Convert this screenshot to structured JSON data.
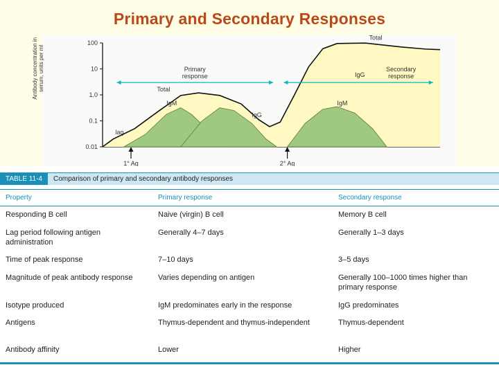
{
  "title": "Primary and Secondary Responses",
  "chart": {
    "type": "line-log",
    "background": "#fafbf9",
    "axis_color": "#111",
    "ylabel": "Antibody concentration in serum,\nunits per ml",
    "ylim": [
      0.01,
      100
    ],
    "yticks": [
      0.01,
      0.1,
      1.0,
      10,
      100
    ],
    "ytick_labels": [
      "0.01",
      "0.1",
      "1.0",
      "10",
      "100"
    ],
    "label_fontsize": 9,
    "plot_labels": {
      "lag": "lag",
      "total1": "Total",
      "igm1": "IgM",
      "igg1": "IgG",
      "primary": "Primary\nresponse",
      "secondary": "Secondary\nresponse",
      "total2": "Total",
      "igg2": "IgG",
      "igm2": "IgM",
      "ag1": "1° Ag",
      "ag2": "2° Ag"
    },
    "colors": {
      "total_line": "#111",
      "total_fill": "#fff8c2",
      "ig_fill": "#9ec97f",
      "arrow": "#0ab6c2"
    },
    "total_curve": [
      [
        90,
        0.01
      ],
      [
        105,
        0.02
      ],
      [
        135,
        0.05
      ],
      [
        170,
        0.25
      ],
      [
        200,
        0.95
      ],
      [
        225,
        1.2
      ],
      [
        255,
        0.95
      ],
      [
        285,
        0.45
      ],
      [
        310,
        0.11
      ],
      [
        325,
        0.06
      ],
      [
        340,
        0.09
      ],
      [
        360,
        1.0
      ],
      [
        380,
        12
      ],
      [
        400,
        60
      ],
      [
        420,
        95
      ],
      [
        460,
        99
      ],
      [
        510,
        70
      ],
      [
        545,
        58
      ],
      [
        565,
        55
      ]
    ],
    "igm_primary": [
      [
        120,
        0.01
      ],
      [
        150,
        0.03
      ],
      [
        180,
        0.18
      ],
      [
        200,
        0.32
      ],
      [
        215,
        0.18
      ],
      [
        240,
        0.04
      ],
      [
        260,
        0.01
      ]
    ],
    "igg_primary": [
      [
        200,
        0.01
      ],
      [
        230,
        0.1
      ],
      [
        255,
        0.32
      ],
      [
        275,
        0.25
      ],
      [
        300,
        0.08
      ],
      [
        320,
        0.02
      ],
      [
        335,
        0.01
      ]
    ],
    "igm_secondary": [
      [
        350,
        0.01
      ],
      [
        375,
        0.08
      ],
      [
        400,
        0.28
      ],
      [
        420,
        0.35
      ],
      [
        445,
        0.2
      ],
      [
        470,
        0.05
      ],
      [
        490,
        0.01
      ]
    ],
    "ag_arrows": {
      "ag1_x": 130,
      "ag2_x": 350
    }
  },
  "table": {
    "number": "TABLE 11-4",
    "caption": "Comparison of primary and secondary antibody responses",
    "header_color": "#1a8fb8",
    "header_bg": "#cde8f2",
    "columns": [
      "Property",
      "Primary response",
      "Secondary response"
    ],
    "rows": [
      [
        "Responding B cell",
        "Naive (virgin) B cell",
        "Memory B cell"
      ],
      [
        "Lag period following antigen administration",
        "Generally 4–7 days",
        "Generally 1–3 days"
      ],
      [
        "Time of peak response",
        "7–10 days",
        "3–5 days"
      ],
      [
        "Magnitude of peak antibody response",
        "Varies depending on antigen",
        "Generally 100–1000 times higher than primary response"
      ],
      [
        "Isotype produced",
        "IgM predominates early in the response",
        "IgG predominates"
      ],
      [
        "Antigens",
        "Thymus-dependent and thymus-independent",
        "Thymus-dependent"
      ],
      [
        "Antibody affinity",
        "Lower",
        "Higher"
      ]
    ],
    "gap_before_row": 6
  }
}
